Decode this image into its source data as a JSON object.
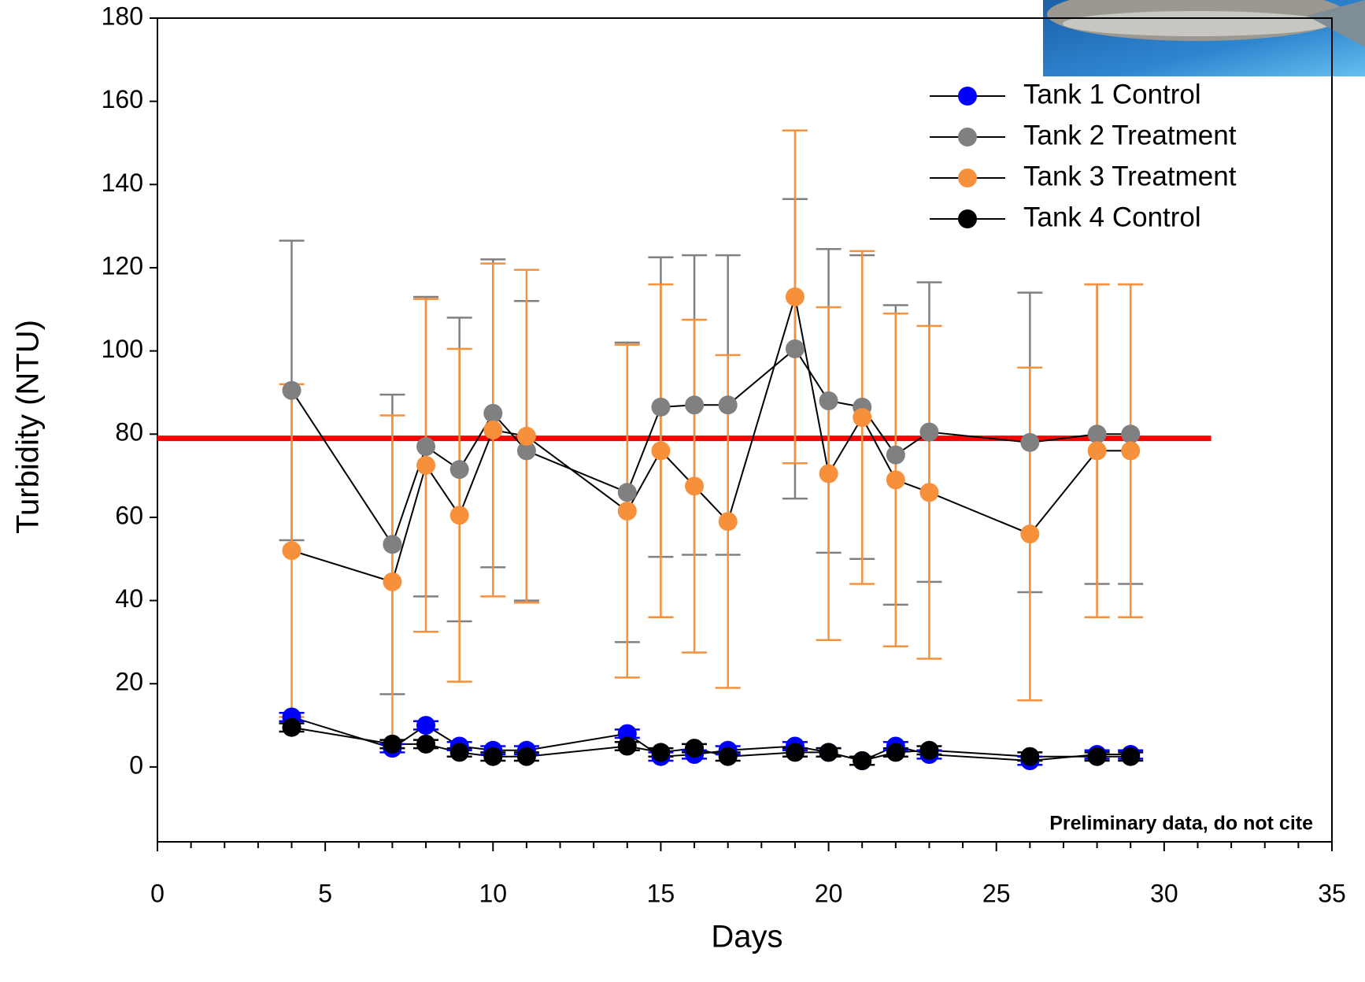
{
  "chart_data": {
    "type": "line",
    "x_label": "Days",
    "y_label": "Turbidity (NTU)",
    "annotation": "Preliminary data, do not cite",
    "x": [
      4,
      7,
      8,
      9,
      10,
      11,
      14,
      15,
      16,
      17,
      19,
      20,
      21,
      22,
      23,
      26,
      28,
      29
    ],
    "series": [
      {
        "name": "Tank 1 Control",
        "color": "#0000ff",
        "values": [
          12,
          4.5,
          10,
          5,
          4,
          4,
          8,
          2.5,
          3,
          4,
          5,
          3.5,
          1.5,
          5,
          3,
          1.5,
          3,
          3
        ],
        "errors": [
          1,
          1,
          1,
          1,
          1,
          1,
          1,
          1,
          1,
          1,
          1,
          1,
          1,
          1,
          1,
          1,
          1,
          1
        ]
      },
      {
        "name": "Tank 2 Treatment",
        "color": "#808080",
        "values": [
          90.5,
          53.5,
          77,
          71.5,
          85,
          76,
          66,
          86.5,
          87,
          87,
          100.5,
          88,
          86.5,
          75,
          80.5,
          78,
          80,
          80
        ],
        "errors": [
          36,
          36,
          36,
          36.5,
          37,
          36,
          36,
          36,
          36,
          36,
          36,
          36.5,
          36.5,
          36,
          36,
          36,
          36,
          36
        ]
      },
      {
        "name": "Tank 3 Treatment",
        "color": "#f7903a",
        "values": [
          52,
          44.5,
          72.5,
          60.5,
          81,
          79.5,
          61.5,
          76,
          67.5,
          59,
          113,
          70.5,
          84,
          69,
          66,
          56,
          76,
          76
        ],
        "errors": [
          40,
          40,
          40,
          40,
          40,
          40,
          40,
          40,
          40,
          40,
          40,
          40,
          40,
          40,
          40,
          40,
          40,
          40
        ]
      },
      {
        "name": "Tank 4 Control",
        "color": "#000000",
        "values": [
          9.5,
          5.5,
          5.5,
          3.5,
          2.5,
          2.5,
          5,
          3.5,
          4.5,
          2.5,
          3.5,
          3.5,
          1.5,
          3.5,
          4,
          2.5,
          2.5,
          2.5
        ],
        "errors": [
          1,
          1,
          1,
          1,
          1,
          1,
          1,
          1,
          1,
          1,
          1,
          1,
          1,
          1,
          1,
          1,
          1,
          1
        ]
      }
    ],
    "line_color": "#000000",
    "reference_line": {
      "y": 79,
      "x": [
        0,
        31.4
      ],
      "color": "#ff0000"
    },
    "xlim": [
      0,
      35
    ],
    "xticks": [
      0,
      5,
      10,
      15,
      20,
      25,
      30,
      35
    ],
    "xminorticks": [
      1,
      2,
      3,
      4,
      6,
      7,
      8,
      9,
      11,
      12,
      13,
      14,
      16,
      17,
      18,
      19,
      21,
      22,
      23,
      24,
      26,
      27,
      28,
      29,
      31,
      32,
      33,
      34
    ],
    "ylim": [
      -18,
      180
    ],
    "yticks": [
      0,
      20,
      40,
      60,
      80,
      100,
      120,
      140,
      160,
      180
    ],
    "legend": "upper right",
    "grid": false
  }
}
